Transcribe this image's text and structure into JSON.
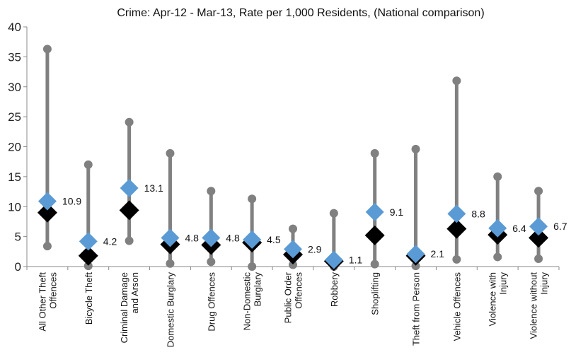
{
  "chart_data": {
    "type": "range-dot",
    "title": "Crime: Apr-12 - Mar-13, Rate per 1,000 Residents, (National comparison)",
    "xlabel": "",
    "ylabel": "",
    "ylim": [
      0,
      40
    ],
    "yticks": [
      0,
      5,
      10,
      15,
      20,
      25,
      30,
      35,
      40
    ],
    "grid": false,
    "legend": "none",
    "categories": [
      [
        "All Other Theft",
        "Offences"
      ],
      [
        "Bicycle Theft"
      ],
      [
        "Criminal Damage",
        "and Arson"
      ],
      [
        "Domestic Burglary"
      ],
      [
        "Drug Offences"
      ],
      [
        "Non-Domestic",
        "Burglary"
      ],
      [
        "Public Order",
        "Offences"
      ],
      [
        "Robbery"
      ],
      [
        "Shoplifting"
      ],
      [
        "Theft from Person"
      ],
      [
        "Vehicle Offences"
      ],
      [
        "Violence with",
        "Injury"
      ],
      [
        "Violence without",
        "Injury"
      ]
    ],
    "range_min": [
      3.4,
      0.1,
      4.3,
      0.5,
      0.8,
      0.0,
      0.3,
      0.0,
      0.4,
      0.1,
      1.2,
      1.6,
      1.3
    ],
    "range_max": [
      36.3,
      17.0,
      24.1,
      18.9,
      12.6,
      11.3,
      6.3,
      8.9,
      18.9,
      19.6,
      31.0,
      15.0,
      12.6
    ],
    "national_average": [
      9.0,
      1.8,
      9.4,
      3.7,
      3.6,
      4.0,
      2.0,
      0.9,
      5.2,
      1.8,
      6.3,
      5.3,
      4.8
    ],
    "local_values": [
      10.9,
      4.2,
      13.1,
      4.8,
      4.8,
      4.5,
      2.9,
      1.1,
      9.1,
      2.1,
      8.8,
      6.4,
      6.7
    ],
    "local_labels": [
      "10.9",
      "4.2",
      "13.1",
      "4.8",
      "4.8",
      "4.5",
      "2.9",
      "1.1",
      "9.1",
      "2.1",
      "8.8",
      "6.4",
      "6.7"
    ],
    "colors": {
      "range_line": "#808080",
      "range_dot": "#808080",
      "national_marker": "#000000",
      "local_marker": "#5B9BD5",
      "axis": "#888888"
    }
  }
}
